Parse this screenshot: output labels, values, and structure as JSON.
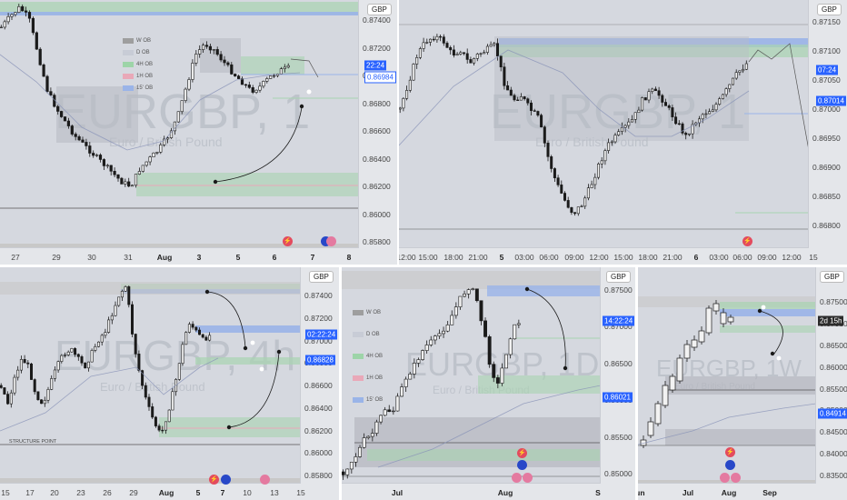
{
  "symbol_watermark": "EURGBP, 1",
  "currency": "GBP",
  "legend": [
    "W OB",
    "D OB",
    "4H OB",
    "1H OB",
    "15' OB"
  ],
  "legend_colors": {
    "W OB": "#9e9e9e",
    "D OB": "#c8ccd6",
    "4H OB": "#9dd4a8",
    "1H OB": "#e9a8b8",
    "15' OB": "#9ab4e8"
  },
  "panels": {
    "p1": {
      "prices": [
        "0.87400",
        "0.87200",
        "0.87000",
        "0.86800",
        "0.86600",
        "0.86400",
        "0.86200",
        "0.86000",
        "0.85800"
      ],
      "tag_time": "22:24",
      "tag_price": "0.86984",
      "times": [
        "27",
        "29",
        "30",
        "31",
        "Aug",
        "3",
        "5",
        "6",
        "7",
        "8"
      ]
    },
    "p2": {
      "prices": [
        "0.87150",
        "0.87100",
        "0.87050",
        "0.87000",
        "0.86950",
        "0.86900",
        "0.86850",
        "0.86800"
      ],
      "tag_time": "07:24",
      "tag_price": "0.87014",
      "times": [
        "12:00",
        "15:00",
        "18:00",
        "21:00",
        "5",
        "03:00",
        "06:00",
        "09:00",
        "12:00",
        "15:00",
        "18:00",
        "21:00",
        "6",
        "03:00",
        "06:00",
        "09:00",
        "12:00",
        "15"
      ]
    },
    "p3": {
      "prices": [
        "0.87400",
        "0.87200",
        "0.87000",
        "0.86800",
        "0.86600",
        "0.86400",
        "0.86200",
        "0.86000",
        "0.85800"
      ],
      "tag_time": "02:22:24",
      "tag_price": "0.86828",
      "structure_label": "STRUCTURE POINT",
      "times": [
        "15",
        "17",
        "20",
        "23",
        "26",
        "29",
        "Aug",
        "5",
        "7",
        "10",
        "13",
        "15"
      ]
    },
    "p4": {
      "prices": [
        "0.87500",
        "0.87000",
        "0.86500",
        "0.86000",
        "0.85500",
        "0.85000"
      ],
      "tag_time": "14:22:24",
      "tag_price": "0.86021",
      "times": [
        "Jul",
        "Aug",
        "S"
      ]
    },
    "p5": {
      "prices": [
        "0.87500",
        "0.87000",
        "0.86500",
        "0.86000",
        "0.85500",
        "0.85000",
        "0.84500",
        "0.84000",
        "0.83500"
      ],
      "tag_time": "2d 15h",
      "tag_price": "0.84914",
      "times": [
        "Jun",
        "Jul",
        "Aug",
        "Sep"
      ]
    }
  }
}
